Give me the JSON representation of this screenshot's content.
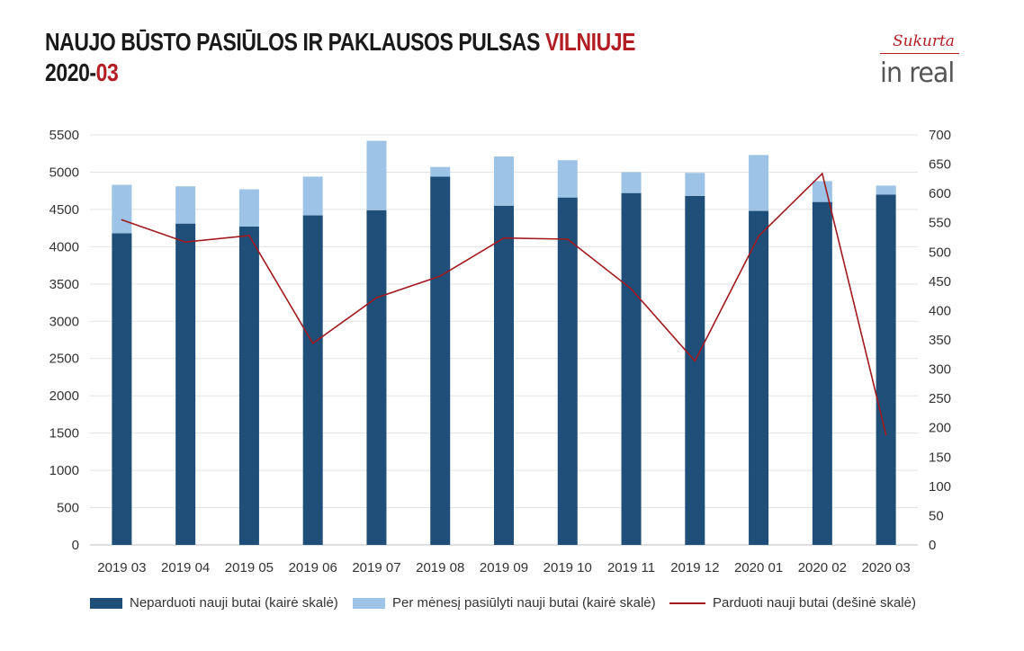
{
  "header": {
    "title_main": "NAUJO BŪSTO PASIŪLOS IR PAKLAUSOS PULSAS ",
    "title_accent": "VILNIUJE",
    "subtitle_main": "2020-",
    "subtitle_accent": "03"
  },
  "logo": {
    "tagline": "Sukurta",
    "brand": "in real"
  },
  "colors": {
    "unsold": "#1f4e79",
    "offered": "#9dc3e6",
    "sold": "#a01a1e",
    "accent": "#b21e23"
  },
  "chart_data": {
    "type": "bar",
    "stacked": true,
    "categories": [
      "2019 03",
      "2019 04",
      "2019 05",
      "2019 06",
      "2019 07",
      "2019 08",
      "2019 09",
      "2019 10",
      "2019 11",
      "2019 12",
      "2020 01",
      "2020 02",
      "2020 03"
    ],
    "series": [
      {
        "name": "Neparduoti nauji butai (kairė skalė)",
        "axis": "left",
        "type": "bar",
        "values": [
          4180,
          4310,
          4270,
          4420,
          4490,
          4940,
          4550,
          4660,
          4720,
          4680,
          4480,
          4600,
          4700
        ]
      },
      {
        "name": "Per mėnesį pasiūlyti nauji butai (kairė skalė)",
        "axis": "left",
        "type": "bar",
        "values": [
          650,
          500,
          500,
          520,
          930,
          130,
          660,
          500,
          280,
          310,
          750,
          280,
          120
        ]
      },
      {
        "name": "Parduoti nauji butai (dešinė skalė)",
        "axis": "right",
        "type": "line",
        "values": [
          555,
          517,
          528,
          344,
          422,
          459,
          524,
          522,
          437,
          314,
          527,
          634,
          188
        ]
      }
    ],
    "ylim_left": [
      0,
      5500
    ],
    "yticks_left": [
      0,
      500,
      1000,
      1500,
      2000,
      2500,
      3000,
      3500,
      4000,
      4500,
      5000,
      5500
    ],
    "ylim_right": [
      0,
      700
    ],
    "yticks_right": [
      0,
      50,
      100,
      150,
      200,
      250,
      300,
      350,
      400,
      450,
      500,
      550,
      600,
      650,
      700
    ],
    "grid": true,
    "legend_position": "bottom"
  }
}
